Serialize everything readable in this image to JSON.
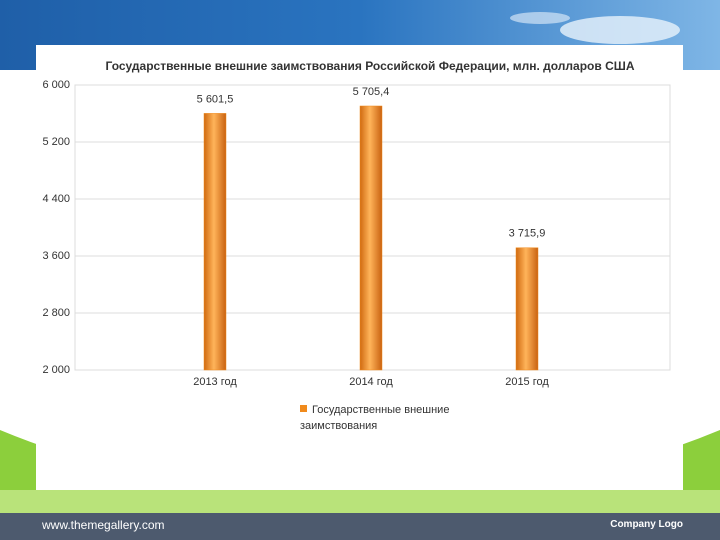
{
  "chart_data": {
    "type": "bar",
    "title": "Государственные внешние заимствования Российской Федерации, млн. долларов США",
    "categories": [
      "2013 год",
      "2014 год",
      "2015 год"
    ],
    "series": [
      {
        "name": "Государственные внешние заимствования",
        "color": "#f08a1c",
        "values": [
          5601.5,
          5705.4,
          3715.9
        ],
        "value_labels": [
          "5 601,5",
          "5 705,4",
          "3 715,9"
        ]
      }
    ],
    "ylim": [
      2000,
      6000
    ],
    "yticks": [
      {
        "value": 2000,
        "label": "2 000"
      },
      {
        "value": 2800,
        "label": "2 800"
      },
      {
        "value": 3600,
        "label": "3 600"
      },
      {
        "value": 4400,
        "label": "4 400"
      },
      {
        "value": 5200,
        "label": "5 200"
      },
      {
        "value": 6000,
        "label": "6 000"
      }
    ],
    "grid": true
  },
  "footer": {
    "url": "www.themegallery.com",
    "logo": "Company Logo"
  }
}
